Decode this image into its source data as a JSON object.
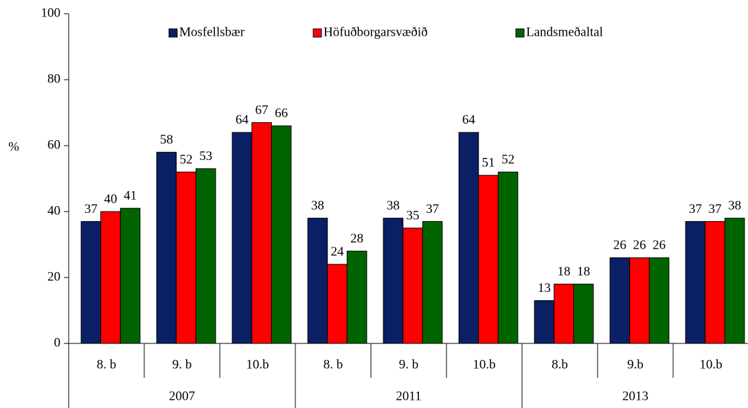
{
  "chart_data": {
    "type": "bar",
    "y_label": "%",
    "groups": [
      {
        "label": "2007",
        "categories": [
          "8. b",
          "9. b",
          "10.b"
        ]
      },
      {
        "label": "2011",
        "categories": [
          "8. b",
          "9. b",
          "10.b"
        ]
      },
      {
        "label": "2013",
        "categories": [
          "8.b",
          "9.b",
          "10.b"
        ]
      }
    ],
    "series": [
      {
        "name": "Mosfellsbær",
        "color": "#0b1f65",
        "values": [
          37,
          58,
          64,
          38,
          38,
          64,
          13,
          26,
          37
        ]
      },
      {
        "name": "Höfuðborgarsvæðið",
        "color": "#ff0000",
        "values": [
          40,
          52,
          67,
          24,
          35,
          51,
          18,
          26,
          37
        ]
      },
      {
        "name": "Landsmeðaltal",
        "color": "#006400",
        "values": [
          41,
          53,
          66,
          28,
          37,
          52,
          18,
          26,
          38
        ]
      }
    ],
    "ylim": [
      0,
      100
    ],
    "yticks": [
      0,
      20,
      40,
      60,
      80,
      100
    ],
    "grid": false,
    "legend": "top"
  }
}
